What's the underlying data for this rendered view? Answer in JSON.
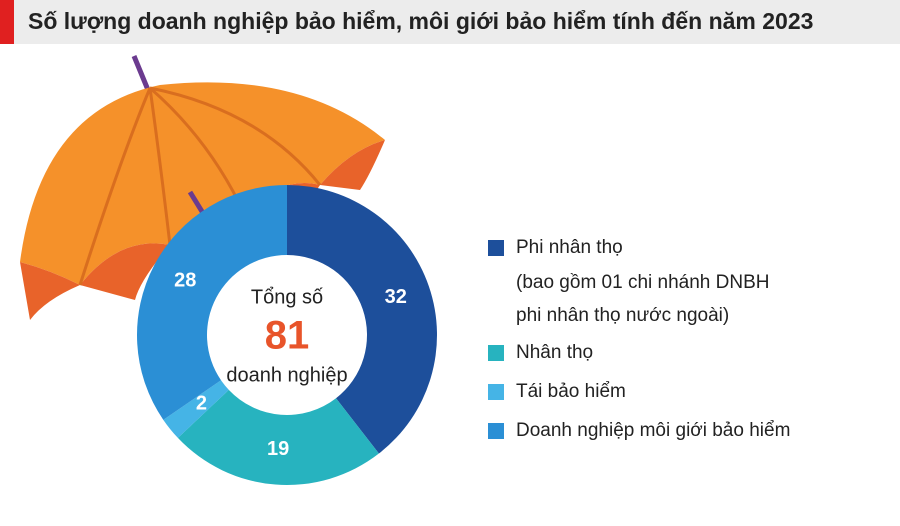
{
  "chart_data": {
    "type": "donut",
    "title": "Số lượng doanh nghiệp bảo hiểm, môi giới bảo hiểm tính đến năm 2023",
    "categories": [
      "Phi nhân thọ",
      "Nhân thọ",
      "Tái bảo hiểm",
      "Doanh nghiệp môi giới bảo hiểm"
    ],
    "values": [
      32,
      19,
      2,
      28
    ],
    "colors": [
      "#1d4f9b",
      "#27b3bf",
      "#45b4e6",
      "#2b8fd5"
    ],
    "legend_note": [
      "(bao gồm 01 chi nhánh DNBH",
      "phi nhân thọ nước ngoài)"
    ],
    "center_top": "Tổng số",
    "total": 81,
    "center_bottom": "doanh nghiệp"
  }
}
